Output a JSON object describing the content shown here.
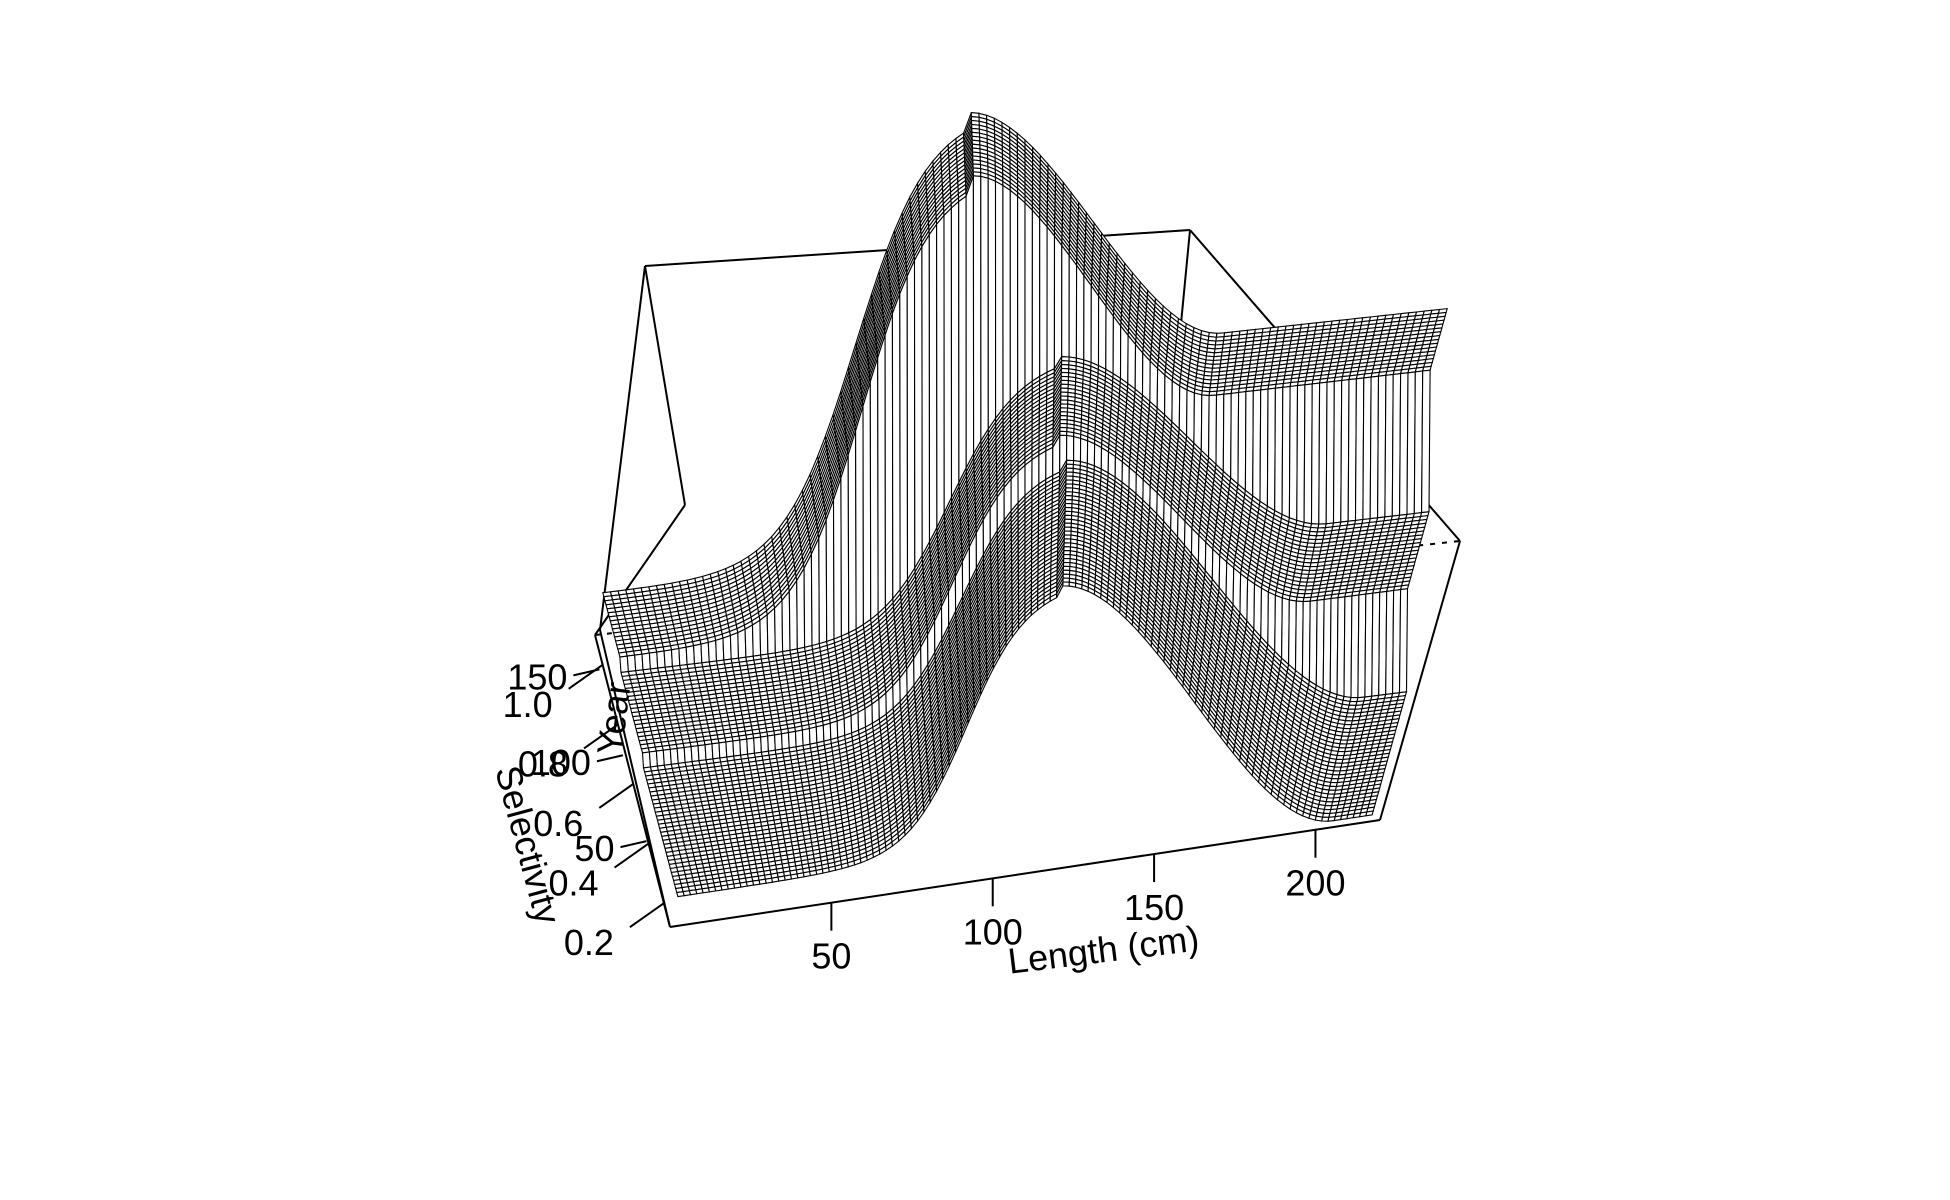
{
  "chart_data": {
    "type": "surface",
    "title": "",
    "xlabel": "Length (cm)",
    "ylabel": "Year",
    "zlabel": "Selectivity",
    "x_ticks": [
      "50",
      "100",
      "150",
      "200"
    ],
    "y_ticks": [
      "50",
      "100",
      "150"
    ],
    "z_ticks": [
      "0.2",
      "0.4",
      "0.6",
      "0.8",
      "1.0"
    ],
    "xlim": [
      0,
      220
    ],
    "ylim": [
      0,
      170
    ],
    "zlim": [
      0.12,
      1.1
    ],
    "grid": false,
    "line_color": "#000000",
    "background": "#ffffff",
    "year_blocks": [
      {
        "years": [
          0,
          80
        ],
        "left_plateau": 0.16,
        "peak_length": 120,
        "peak_value": 0.62,
        "drop_end_length": 205,
        "right_level": 0.12
      },
      {
        "years": [
          80,
          130
        ],
        "left_plateau": 0.18,
        "peak_length": 118,
        "peak_value": 0.66,
        "drop_end_length": 190,
        "right_level": 0.3
      },
      {
        "years": [
          130,
          170
        ],
        "left_plateau": 0.2,
        "peak_length": 95,
        "peak_value": 1.0,
        "drop_end_length": 160,
        "right_level": 0.55
      }
    ]
  }
}
